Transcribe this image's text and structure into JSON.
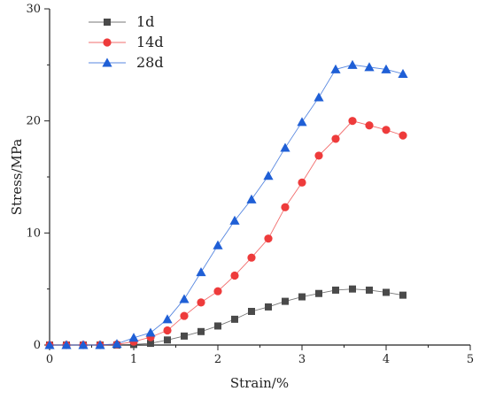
{
  "chart_data": {
    "type": "line",
    "xlabel": "Strain/%",
    "ylabel": "Stress/MPa",
    "xlim": [
      0,
      5
    ],
    "ylim": [
      0,
      30
    ],
    "xticks": [
      0,
      1,
      2,
      3,
      4,
      5
    ],
    "yticks": [
      0,
      10,
      20,
      30
    ],
    "legend_position": "top-left",
    "series": [
      {
        "name": "1d",
        "color": "#4a4a4a",
        "marker": "square",
        "x": [
          0,
          0.2,
          0.4,
          0.6,
          0.8,
          1.0,
          1.2,
          1.4,
          1.6,
          1.8,
          2.0,
          2.2,
          2.4,
          2.6,
          2.8,
          3.0,
          3.2,
          3.4,
          3.6,
          3.8,
          4.0,
          4.2
        ],
        "y": [
          0,
          0,
          0,
          0,
          0,
          0.05,
          0.15,
          0.45,
          0.8,
          1.2,
          1.7,
          2.3,
          3.0,
          3.4,
          3.9,
          4.3,
          4.6,
          4.9,
          5.0,
          4.9,
          4.7,
          4.45
        ]
      },
      {
        "name": "14d",
        "color": "#ee3b3b",
        "marker": "circle",
        "x": [
          0,
          0.2,
          0.4,
          0.6,
          0.8,
          1.0,
          1.2,
          1.4,
          1.6,
          1.8,
          2.0,
          2.2,
          2.4,
          2.6,
          2.8,
          3.0,
          3.2,
          3.4,
          3.6,
          3.8,
          4.0,
          4.2
        ],
        "y": [
          0,
          0,
          0,
          0,
          0.05,
          0.3,
          0.7,
          1.3,
          2.6,
          3.8,
          4.8,
          6.2,
          7.8,
          9.5,
          12.3,
          14.5,
          16.9,
          18.4,
          20.0,
          19.6,
          19.2,
          18.7
        ]
      },
      {
        "name": "28d",
        "color": "#1f5fd6",
        "marker": "triangle",
        "x": [
          0,
          0.2,
          0.4,
          0.6,
          0.8,
          1.0,
          1.2,
          1.4,
          1.6,
          1.8,
          2.0,
          2.2,
          2.4,
          2.6,
          2.8,
          3.0,
          3.2,
          3.4,
          3.6,
          3.8,
          4.0,
          4.2
        ],
        "y": [
          0,
          0,
          0,
          0,
          0.1,
          0.65,
          1.1,
          2.3,
          4.1,
          6.5,
          8.9,
          11.1,
          13.0,
          15.1,
          17.6,
          19.9,
          22.1,
          24.6,
          25.0,
          24.8,
          24.6,
          24.2
        ]
      }
    ]
  }
}
